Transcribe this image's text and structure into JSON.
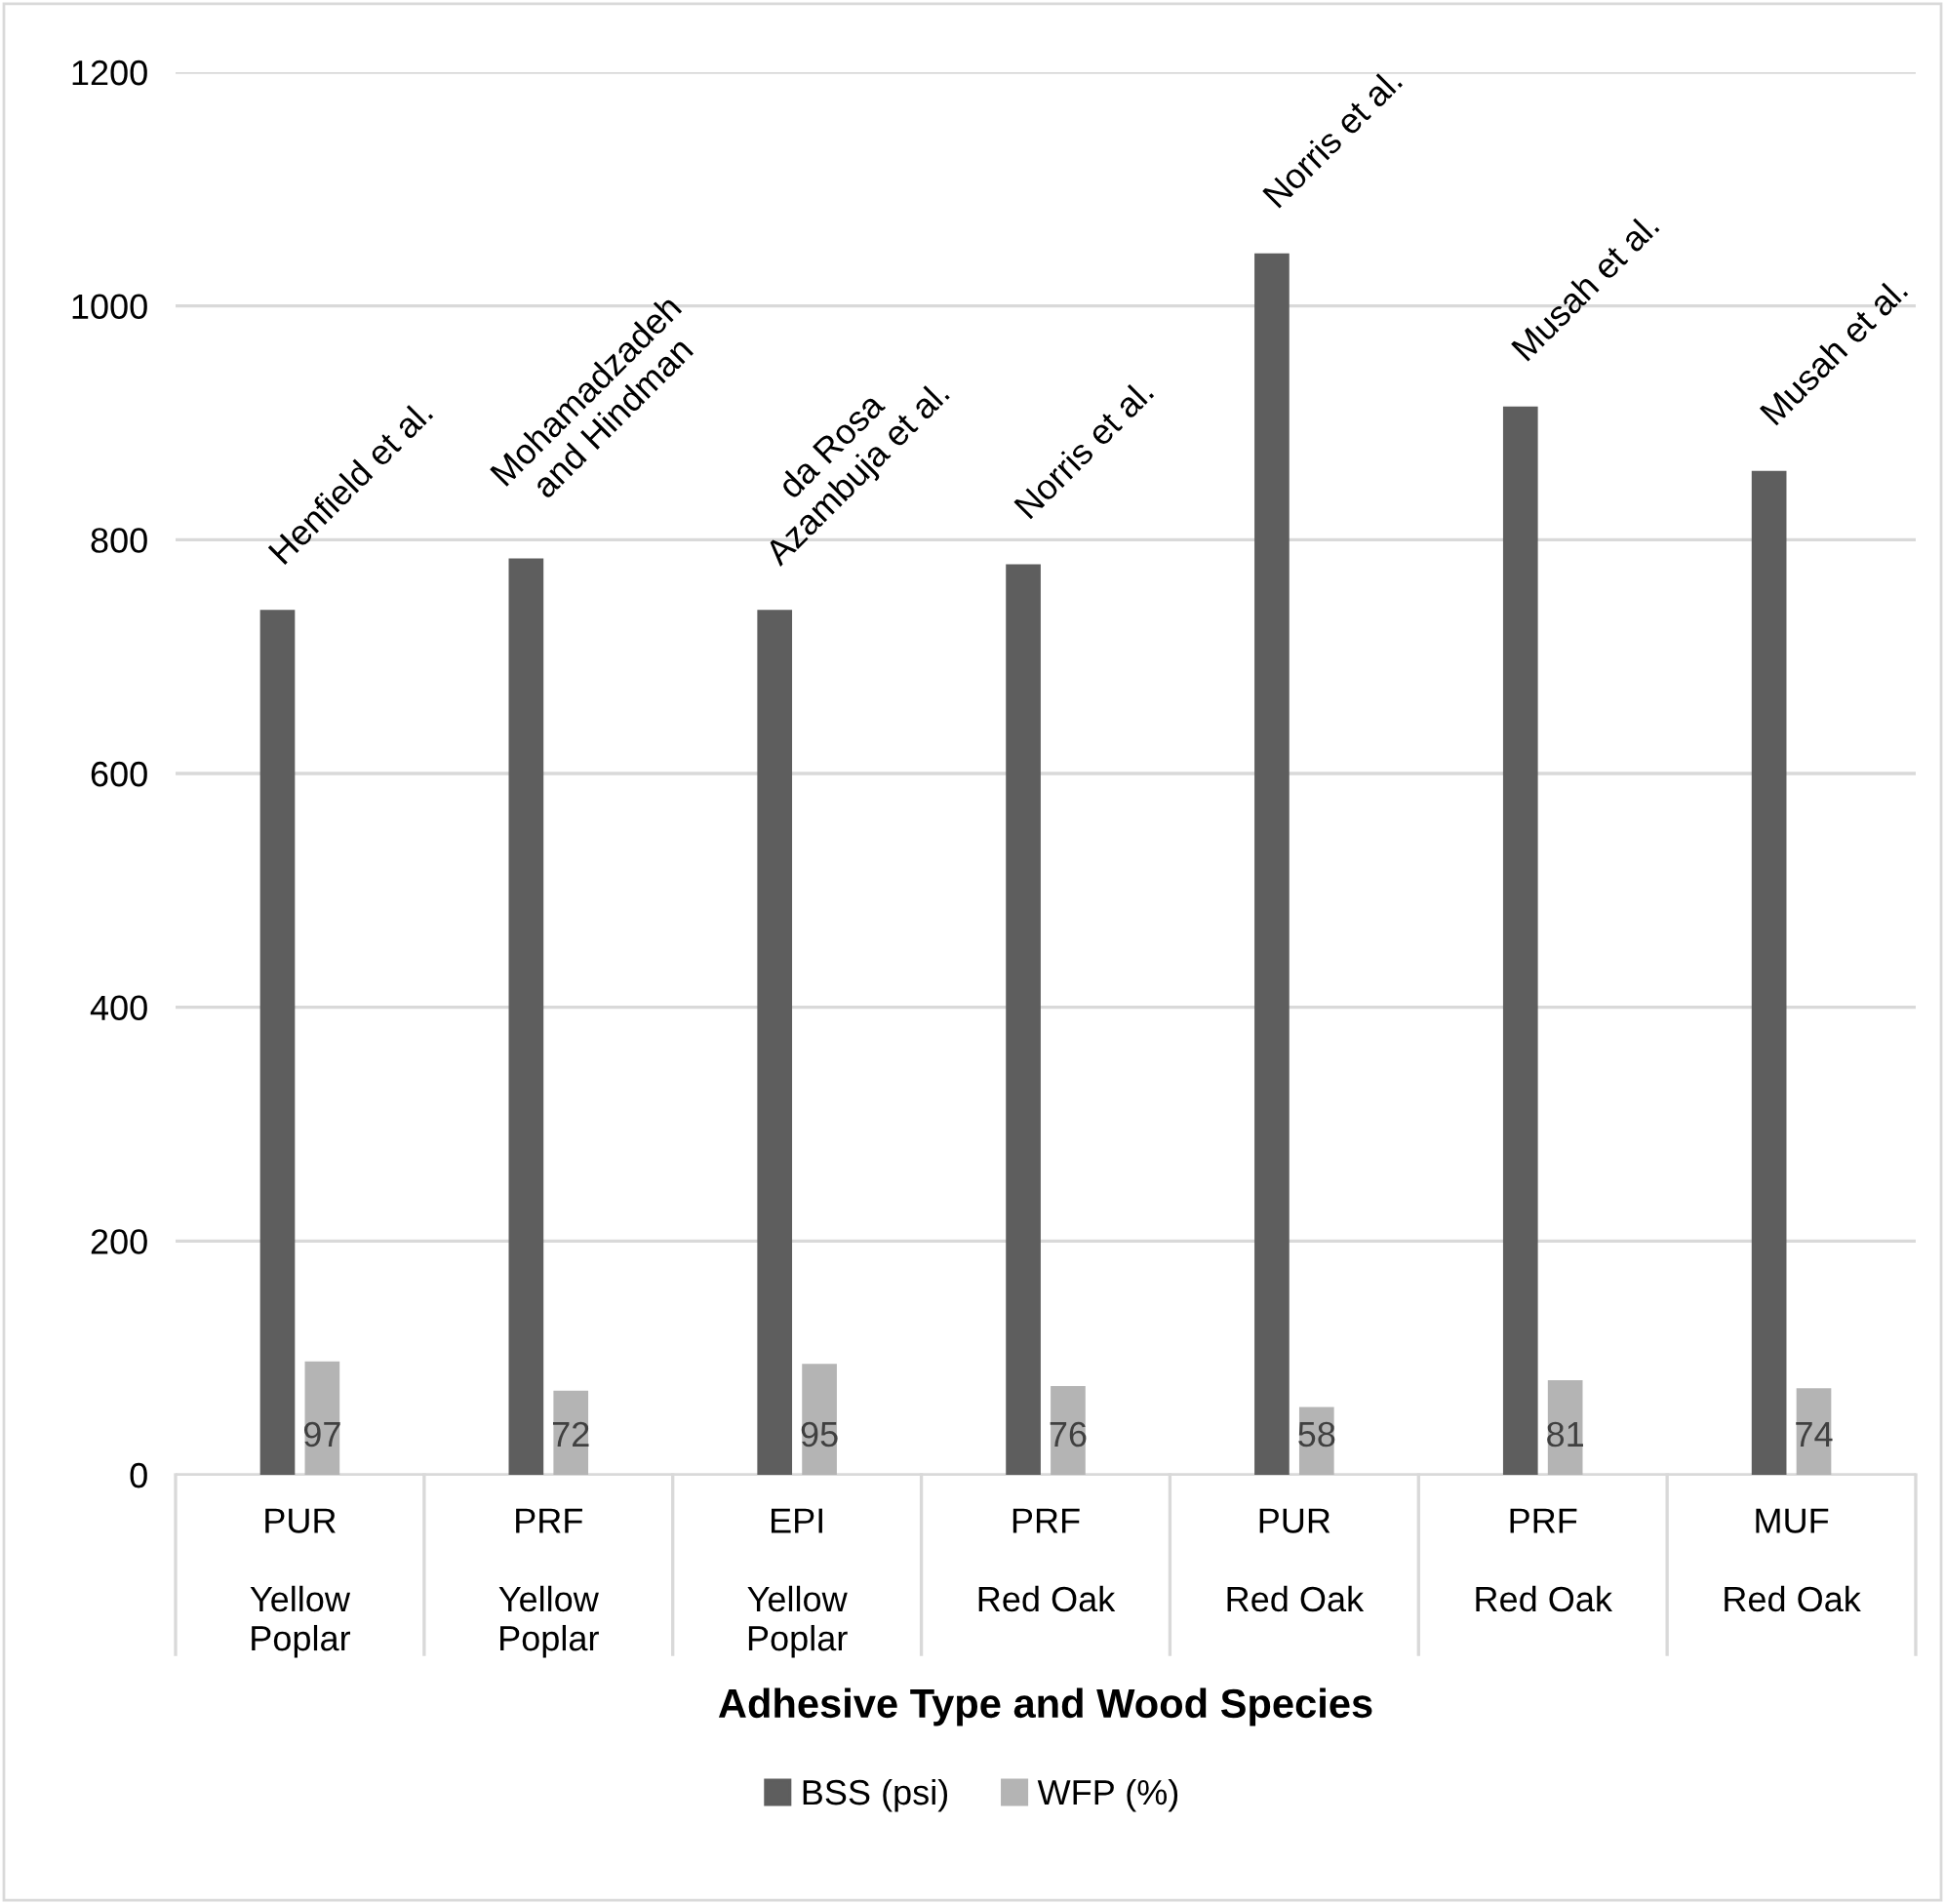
{
  "chart_data": {
    "type": "bar",
    "categories": [
      "PUR\n\nYellow\nPoplar",
      "PRF\n\nYellow\nPoplar",
      "EPI\n\nYellow\nPoplar",
      "PRF\n\nRed Oak",
      "PUR\n\nRed Oak",
      "PRF\n\nRed Oak",
      "MUF\n\nRed Oak"
    ],
    "series": [
      {
        "name": "BSS (psi)",
        "color": "#5e5e5e",
        "values": [
          740,
          784,
          740,
          779,
          1045,
          914,
          859
        ]
      },
      {
        "name": "WFP (%)",
        "color": "#b4b4b4",
        "values": [
          97,
          72,
          95,
          76,
          58,
          81,
          74
        ],
        "value_labels": [
          "97",
          "72",
          "95",
          "76",
          "58",
          "81",
          "74"
        ]
      }
    ],
    "xlabel": "Adhesive Type and Wood Species",
    "ylim": [
      0,
      1200
    ],
    "yticks": [
      0,
      200,
      400,
      600,
      800,
      1000,
      1200
    ],
    "grid": "y",
    "legend": "bottom",
    "annotations": [
      "Henfield et al.",
      "Mohamadzadeh\nand Hindman",
      "da Rosa\nAzambuja et al.",
      "Norris et al.",
      "Norris et al.",
      "Musah et al.",
      "Musah et al."
    ]
  }
}
